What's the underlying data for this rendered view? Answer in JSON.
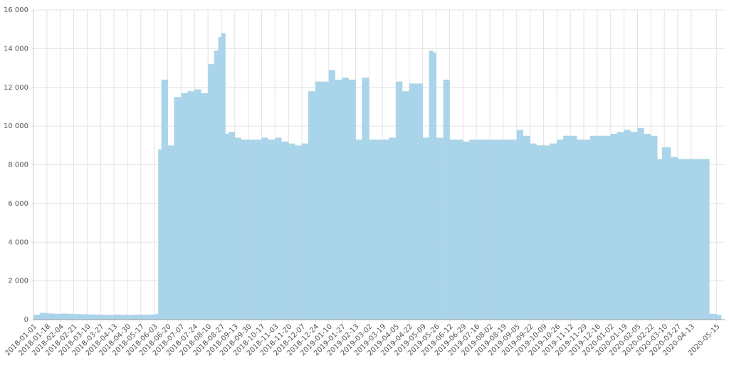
{
  "chart_data": {
    "type": "bar",
    "color": "#aad4ea",
    "grid": true,
    "xlim": [
      "2018-01-01",
      "2020-05-21"
    ],
    "xticks": [
      "2018-01-01",
      "2018-01-18",
      "2018-02-04",
      "2018-02-21",
      "2018-03-10",
      "2018-03-27",
      "2018-04-13",
      "2018-04-30",
      "2018-05-17",
      "2018-06-03",
      "2018-06-20",
      "2018-07-07",
      "2018-07-24",
      "2018-08-10",
      "2018-08-27",
      "2018-09-13",
      "2018-09-30",
      "2018-10-17",
      "2018-11-03",
      "2018-11-20",
      "2018-12-07",
      "2018-12-24",
      "2019-01-10",
      "2019-01-27",
      "2019-02-13",
      "2019-03-02",
      "2019-03-19",
      "2019-04-05",
      "2019-04-22",
      "2019-05-09",
      "2019-05-26",
      "2019-06-12",
      "2019-06-29",
      "2019-07-16",
      "2019-08-02",
      "2019-08-19",
      "2019-09-05",
      "2019-09-22",
      "2019-10-09",
      "2019-10-26",
      "2019-11-12",
      "2019-11-29",
      "2019-12-16",
      "2020-01-02",
      "2020-01-19",
      "2020-02-05",
      "2020-02-22",
      "2020-03-10",
      "2020-03-27",
      "2020-04-13",
      "2020-05-15"
    ],
    "ylim": [
      0,
      16000
    ],
    "yticks": [
      0,
      {
        "value": 2000,
        "label": "2 000"
      },
      {
        "value": 4000,
        "label": "4 000"
      },
      {
        "value": 6000,
        "label": "6 000"
      },
      {
        "value": 8000,
        "label": "8 000"
      },
      {
        "value": 10000,
        "label": "10 000"
      },
      {
        "value": 12000,
        "label": "12 000"
      },
      {
        "value": 14000,
        "label": "14 000"
      },
      {
        "value": 16000,
        "label": "16 000"
      }
    ],
    "x": [
      "2018-01-01",
      "2018-01-09",
      "2018-01-18",
      "2018-01-26",
      "2018-02-04",
      "2018-02-12",
      "2018-02-21",
      "2018-03-01",
      "2018-03-10",
      "2018-03-18",
      "2018-03-27",
      "2018-04-04",
      "2018-04-13",
      "2018-04-21",
      "2018-04-30",
      "2018-05-08",
      "2018-05-17",
      "2018-05-25",
      "2018-06-03",
      "2018-06-08",
      "2018-06-12",
      "2018-06-20",
      "2018-06-28",
      "2018-07-07",
      "2018-07-15",
      "2018-07-24",
      "2018-08-01",
      "2018-08-10",
      "2018-08-18",
      "2018-08-23",
      "2018-08-27",
      "2018-09-01",
      "2018-09-05",
      "2018-09-13",
      "2018-09-21",
      "2018-09-30",
      "2018-10-08",
      "2018-10-17",
      "2018-10-25",
      "2018-11-03",
      "2018-11-11",
      "2018-11-20",
      "2018-11-28",
      "2018-12-07",
      "2018-12-15",
      "2018-12-24",
      "2019-01-01",
      "2019-01-10",
      "2019-01-18",
      "2019-01-27",
      "2019-02-04",
      "2019-02-13",
      "2019-02-21",
      "2019-03-02",
      "2019-03-10",
      "2019-03-19",
      "2019-03-27",
      "2019-04-05",
      "2019-04-13",
      "2019-04-22",
      "2019-04-30",
      "2019-05-09",
      "2019-05-17",
      "2019-05-22",
      "2019-05-26",
      "2019-06-04",
      "2019-06-12",
      "2019-06-20",
      "2019-06-29",
      "2019-07-07",
      "2019-07-16",
      "2019-07-24",
      "2019-08-02",
      "2019-08-10",
      "2019-08-19",
      "2019-08-27",
      "2019-09-05",
      "2019-09-13",
      "2019-09-22",
      "2019-09-30",
      "2019-10-09",
      "2019-10-17",
      "2019-10-26",
      "2019-11-03",
      "2019-11-12",
      "2019-11-20",
      "2019-11-29",
      "2019-12-07",
      "2019-12-16",
      "2019-12-24",
      "2020-01-02",
      "2020-01-10",
      "2020-01-19",
      "2020-01-27",
      "2020-02-05",
      "2020-02-13",
      "2020-02-22",
      "2020-03-01",
      "2020-03-07",
      "2020-03-18",
      "2020-03-27",
      "2020-04-04",
      "2020-04-13",
      "2020-04-21",
      "2020-05-03",
      "2020-05-06",
      "2020-05-15"
    ],
    "values": [
      250,
      350,
      320,
      300,
      310,
      300,
      290,
      280,
      270,
      260,
      250,
      240,
      260,
      250,
      240,
      260,
      250,
      260,
      280,
      8800,
      12400,
      9000,
      11500,
      11700,
      11800,
      11900,
      11700,
      13200,
      13900,
      14600,
      14800,
      9600,
      9700,
      9400,
      9300,
      9300,
      9300,
      9400,
      9300,
      9400,
      9200,
      9100,
      9000,
      9100,
      11800,
      12300,
      12300,
      12900,
      12400,
      12500,
      12400,
      9300,
      12500,
      9300,
      9300,
      9300,
      9400,
      12300,
      11800,
      12200,
      12200,
      9400,
      13900,
      13800,
      9400,
      12400,
      9300,
      9300,
      9200,
      9300,
      9300,
      9300,
      9300,
      9300,
      9300,
      9300,
      9800,
      9500,
      9100,
      9000,
      9000,
      9100,
      9300,
      9500,
      9500,
      9300,
      9300,
      9500,
      9500,
      9500,
      9600,
      9700,
      9800,
      9700,
      9900,
      9600,
      9500,
      8300,
      8900,
      8400,
      8300,
      8300,
      8300,
      8300,
      8300,
      300,
      250
    ]
  }
}
